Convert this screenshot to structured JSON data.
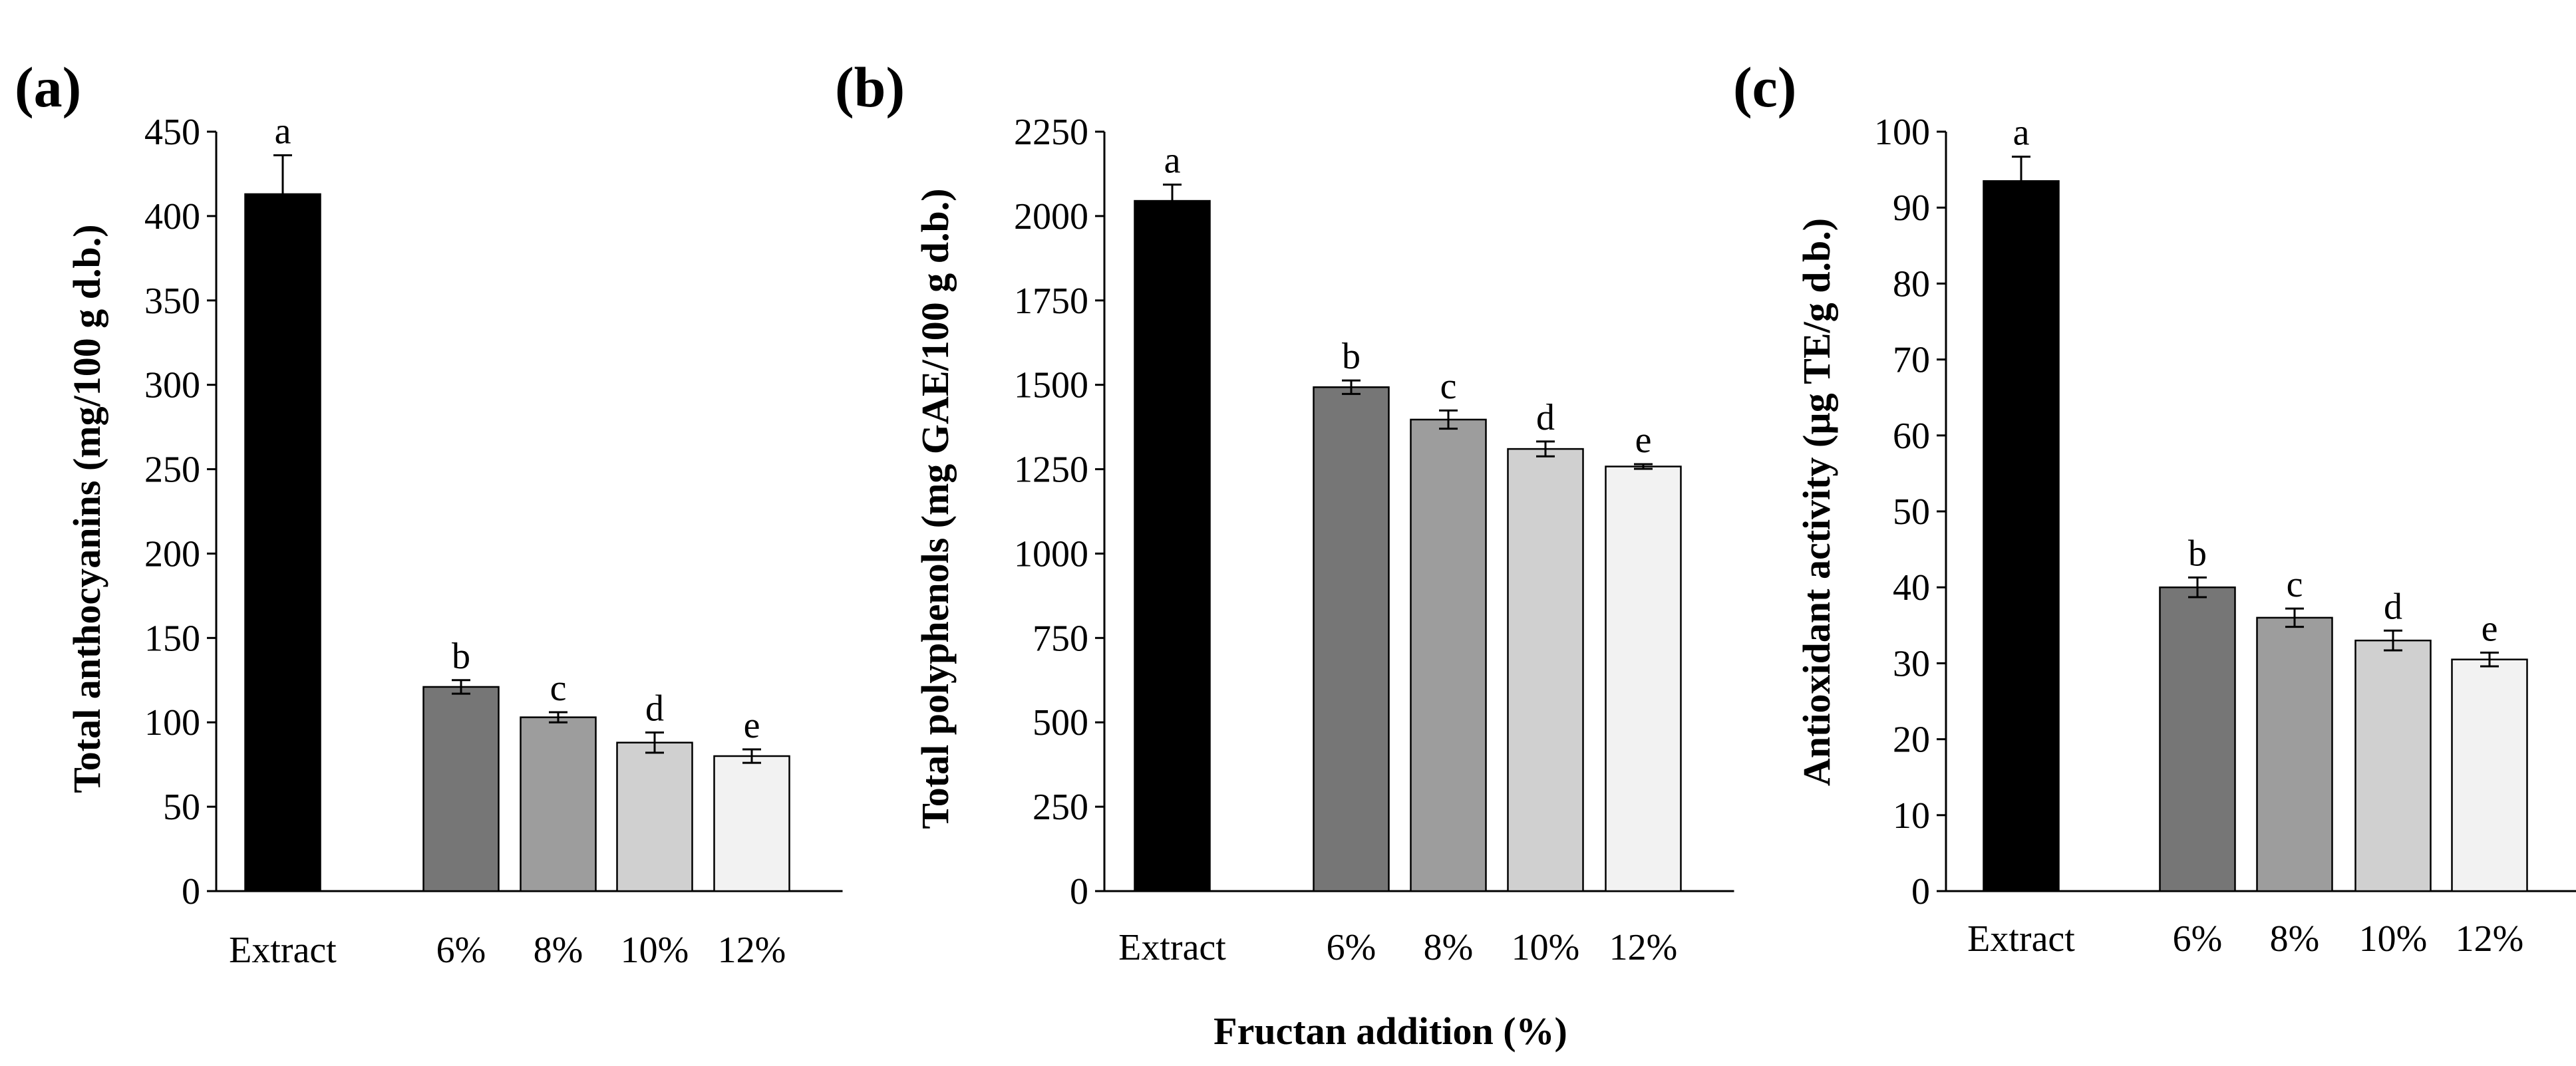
{
  "figure": {
    "shared_xlabel": "Fructan addition (%)"
  },
  "chart_data": [
    {
      "panel": "(a)",
      "type": "bar",
      "categories": [
        "Extract",
        "6%",
        "8%",
        "10%",
        "12%"
      ],
      "values": [
        413,
        121,
        103,
        88,
        80
      ],
      "errors": [
        23,
        4,
        3,
        6,
        4
      ],
      "letters": [
        "a",
        "b",
        "c",
        "d",
        "e"
      ],
      "colors": [
        "#000000",
        "#767676",
        "#9d9d9d",
        "#d0d0d0",
        "#f2f2f2"
      ],
      "ylabel": "Total anthocyanins (mg/100 g d.b.)",
      "ylim": [
        0,
        450
      ],
      "ystep": 50,
      "yticks": [
        "0",
        "50",
        "100",
        "150",
        "200",
        "250",
        "300",
        "350",
        "400",
        "450"
      ]
    },
    {
      "panel": "(b)",
      "type": "bar",
      "categories": [
        "Extract",
        "6%",
        "8%",
        "10%",
        "12%"
      ],
      "values": [
        2045,
        1493,
        1397,
        1310,
        1258
      ],
      "errors": [
        48,
        20,
        27,
        22,
        7
      ],
      "letters": [
        "a",
        "b",
        "c",
        "d",
        "e"
      ],
      "colors": [
        "#000000",
        "#767676",
        "#9d9d9d",
        "#d0d0d0",
        "#f2f2f2"
      ],
      "ylabel": "Total polyphenols (mg GAE/100 g d.b.)",
      "ylim": [
        0,
        2250
      ],
      "ystep": 250,
      "yticks": [
        "0",
        "250",
        "500",
        "750",
        "1000",
        "1250",
        "1500",
        "1750",
        "2000",
        "2250"
      ]
    },
    {
      "panel": "(c)",
      "type": "bar",
      "categories": [
        "Extract",
        "6%",
        "8%",
        "10%",
        "12%"
      ],
      "values": [
        93.5,
        40,
        36,
        33,
        30.5
      ],
      "errors": [
        3.2,
        1.3,
        1.2,
        1.3,
        0.9
      ],
      "letters": [
        "a",
        "b",
        "c",
        "d",
        "e"
      ],
      "colors": [
        "#000000",
        "#767676",
        "#9d9d9d",
        "#d0d0d0",
        "#f2f2f2"
      ],
      "ylabel": "Antioxidant activity (µg TE/g d.b.)",
      "ylim": [
        0,
        100
      ],
      "ystep": 10,
      "yticks": [
        "0",
        "10",
        "20",
        "30",
        "40",
        "50",
        "60",
        "70",
        "80",
        "90",
        "100"
      ]
    }
  ]
}
